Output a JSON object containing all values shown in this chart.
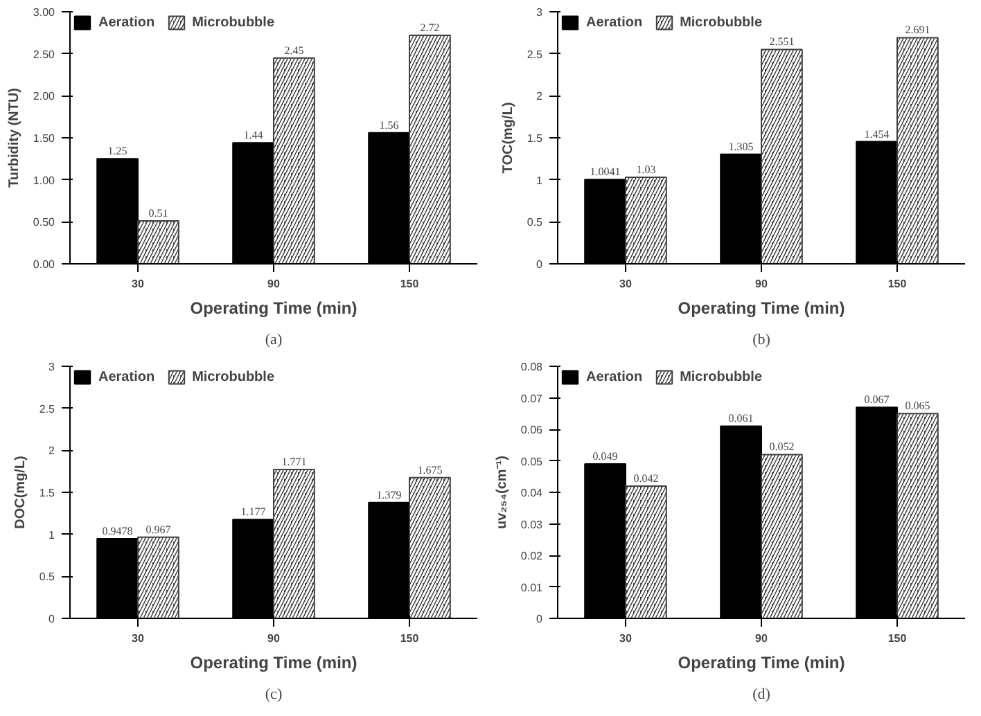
{
  "chart_data": [
    {
      "type": "bar",
      "categories": [
        "30",
        "90",
        "150"
      ],
      "xlabel": "Operating Time (min)",
      "ylabel": "Turbidity (NTU)",
      "ylim": [
        0,
        3
      ],
      "yticks": [
        {
          "value": 0,
          "label": "0.00"
        },
        {
          "value": 0.5,
          "label": "0.50"
        },
        {
          "value": 1,
          "label": "1.00"
        },
        {
          "value": 1.5,
          "label": "1.50"
        },
        {
          "value": 2,
          "label": "2.00"
        },
        {
          "value": 2.5,
          "label": "2.50"
        },
        {
          "value": 3,
          "label": "3.00"
        }
      ],
      "series": [
        {
          "name": "Aeration",
          "color": "#000000",
          "values": [
            1.25,
            1.44,
            1.56
          ]
        },
        {
          "name": "Microbubble",
          "color": "#404040",
          "values": [
            0.51,
            2.45,
            2.72
          ]
        }
      ],
      "data_labels": true,
      "legend": "top left",
      "grid": false,
      "annotations": [
        "(a)"
      ]
    },
    {
      "type": "bar",
      "categories": [
        "30",
        "90",
        "150"
      ],
      "xlabel": "Operating Time (min)",
      "ylabel": "TOC(mg/L)",
      "ylim": [
        0,
        3
      ],
      "yticks": [
        0,
        0.5,
        1,
        1.5,
        2,
        2.5,
        3
      ],
      "series": [
        {
          "name": "Aeration",
          "color": "#000000",
          "values": [
            1.0041,
            1.305,
            1.454
          ]
        },
        {
          "name": "Microbubble",
          "color": "#404040",
          "values": [
            1.03,
            2.551,
            2.691
          ]
        }
      ],
      "data_labels": true,
      "legend": "top left",
      "grid": false,
      "annotations": [
        "(b)"
      ]
    },
    {
      "type": "bar",
      "categories": [
        "30",
        "90",
        "150"
      ],
      "xlabel": "Operating Time (min)",
      "ylabel": "DOC(mg/L)",
      "ylim": [
        0,
        3
      ],
      "yticks": [
        0,
        0.5,
        1,
        1.5,
        2,
        2.5,
        3
      ],
      "series": [
        {
          "name": "Aeration",
          "color": "#000000",
          "values": [
            0.9478,
            1.177,
            1.379
          ]
        },
        {
          "name": "Microbubble",
          "color": "#404040",
          "values": [
            0.967,
            1.771,
            1.675
          ]
        }
      ],
      "data_labels": true,
      "legend": "top left",
      "grid": false,
      "annotations": [
        "(c)"
      ]
    },
    {
      "type": "bar",
      "categories": [
        "30",
        "90",
        "150"
      ],
      "xlabel": "Operating Time (min)",
      "ylabel": "uv₂₅₄(cm⁻¹)",
      "ylim": [
        0,
        0.08
      ],
      "yticks": [
        0,
        0.01,
        0.02,
        0.03,
        0.04,
        0.05,
        0.06,
        0.07,
        0.08
      ],
      "series": [
        {
          "name": "Aeration",
          "color": "#000000",
          "values": [
            0.049,
            0.061,
            0.067
          ]
        },
        {
          "name": "Microbubble",
          "color": "#404040",
          "values": [
            0.042,
            0.052,
            0.065
          ]
        }
      ],
      "data_labels": true,
      "legend": "top left",
      "grid": false,
      "annotations": [
        "(d)"
      ]
    }
  ]
}
